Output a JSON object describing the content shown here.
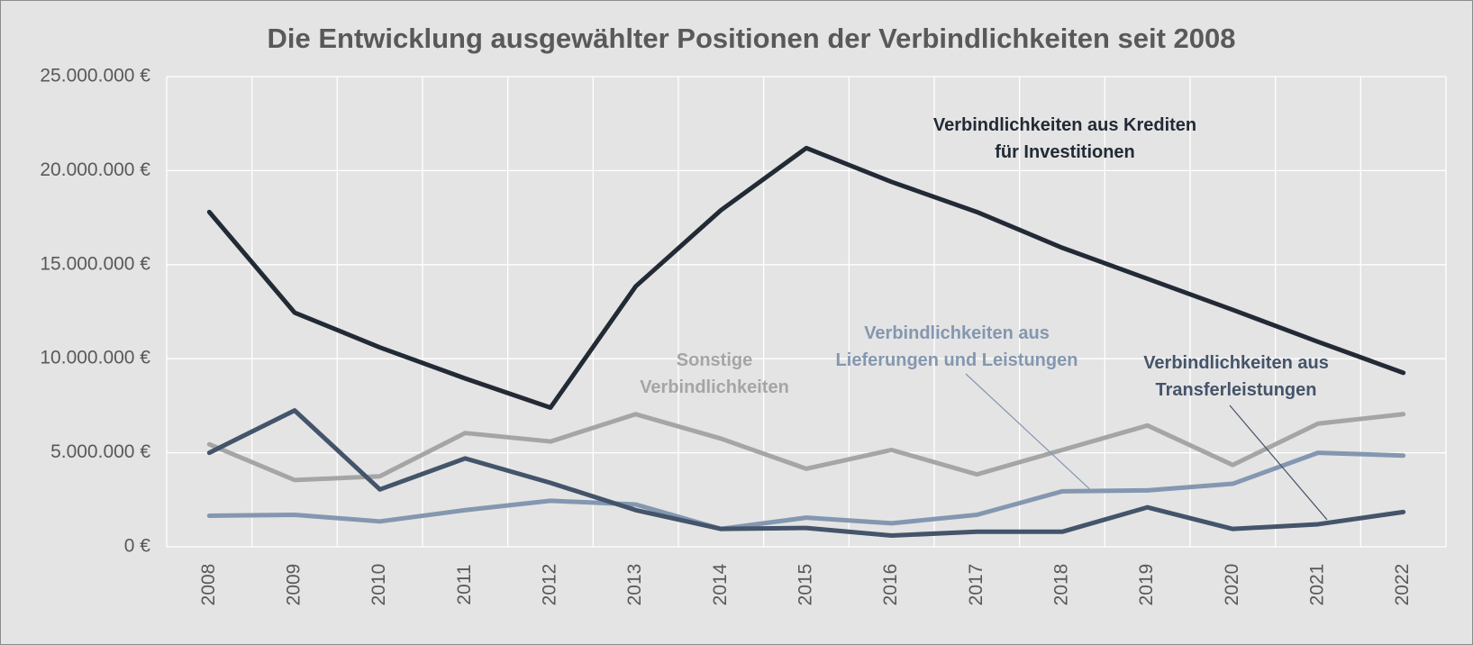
{
  "chart_data": {
    "type": "line",
    "title": "Die Entwicklung ausgewählter Positionen der Verbindlichkeiten seit 2008",
    "categories": [
      "2008",
      "2009",
      "2010",
      "2011",
      "2012",
      "2013",
      "2014",
      "2015",
      "2016",
      "2017",
      "2018",
      "2019",
      "2020",
      "2021",
      "2022"
    ],
    "series": [
      {
        "name": "Verbindlichkeiten aus Krediten für Investitionen",
        "color": "#222a35",
        "values": [
          17800000,
          12450000,
          10600000,
          8950000,
          7400000,
          13850000,
          17900000,
          21200000,
          19400000,
          17800000,
          15900000,
          14250000,
          12600000,
          10900000,
          9250000
        ]
      },
      {
        "name": "Verbindlichkeiten aus Transferleistungen",
        "color": "#44546a",
        "values": [
          5000000,
          7250000,
          3050000,
          4700000,
          3400000,
          1950000,
          950000,
          1000000,
          600000,
          800000,
          800000,
          2100000,
          950000,
          1200000,
          1850000
        ]
      },
      {
        "name": "Sonstige Verbindlichkeiten",
        "color": "#a5a5a5",
        "values": [
          5450000,
          3550000,
          3750000,
          6050000,
          5600000,
          7050000,
          5750000,
          4150000,
          5150000,
          3850000,
          5150000,
          6450000,
          4350000,
          6550000,
          7050000
        ]
      },
      {
        "name": "Verbindlichkeiten aus Lieferungen und Leistungen",
        "color": "#8497b0",
        "values": [
          1650000,
          1700000,
          1350000,
          1950000,
          2450000,
          2250000,
          950000,
          1550000,
          1250000,
          1700000,
          2950000,
          3000000,
          3350000,
          5000000,
          4850000
        ]
      }
    ],
    "ylim": [
      0,
      25000000
    ],
    "yticks": [
      {
        "value": 0,
        "label": "0 €"
      },
      {
        "value": 5000000,
        "label": "5.000.000 €"
      },
      {
        "value": 10000000,
        "label": "10.000.000 €"
      },
      {
        "value": 15000000,
        "label": "15.000.000 €"
      },
      {
        "value": 20000000,
        "label": "20.000.000 €"
      },
      {
        "value": 25000000,
        "label": "25.000.000 €"
      }
    ],
    "grid": true
  }
}
